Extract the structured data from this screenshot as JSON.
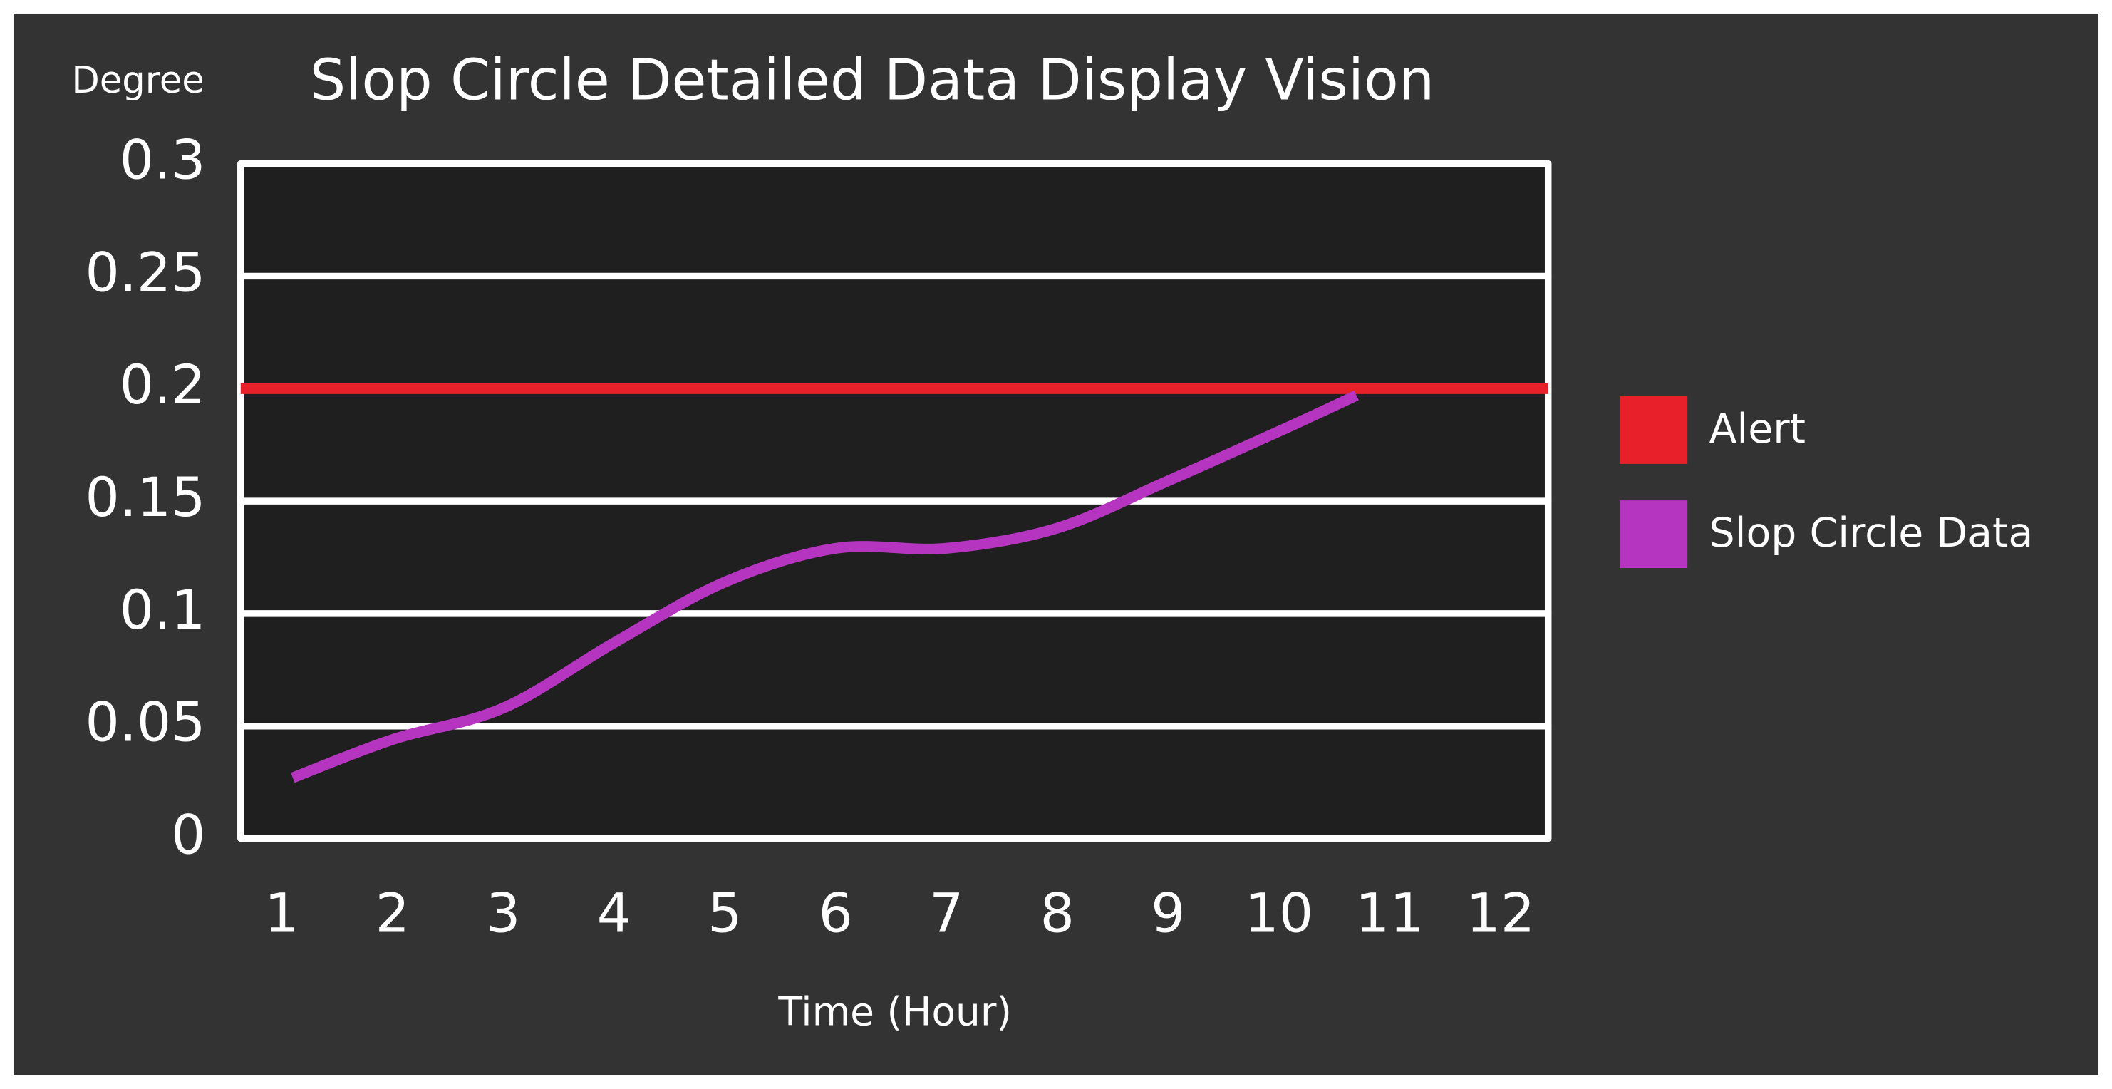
{
  "chart_data": {
    "type": "line",
    "title": "Slop Circle Detailed Data Display Vision",
    "y_label": "Degree",
    "x_label": "Time (Hour)",
    "xlim": [
      0.63,
      12.43
    ],
    "xticks": [
      1,
      2,
      3,
      4,
      5,
      6,
      7,
      8,
      9,
      10,
      11,
      12
    ],
    "ylim": [
      0,
      0.3
    ],
    "yticks": [
      0,
      0.05,
      0.1,
      0.15,
      0.2,
      0.25,
      0.3
    ],
    "grid": true,
    "legend": "right",
    "threshold": {
      "name": "Alert",
      "color": "#e8202a",
      "value": 0.2
    },
    "series": [
      {
        "name": "Slop Circle Data",
        "color": "#b535c0",
        "x": [
          1.1,
          2,
          3,
          4,
          5,
          6,
          7,
          8,
          9,
          10,
          10.7
        ],
        "values": [
          0.027,
          0.044,
          0.058,
          0.087,
          0.114,
          0.129,
          0.129,
          0.138,
          0.159,
          0.181,
          0.197
        ]
      }
    ]
  }
}
